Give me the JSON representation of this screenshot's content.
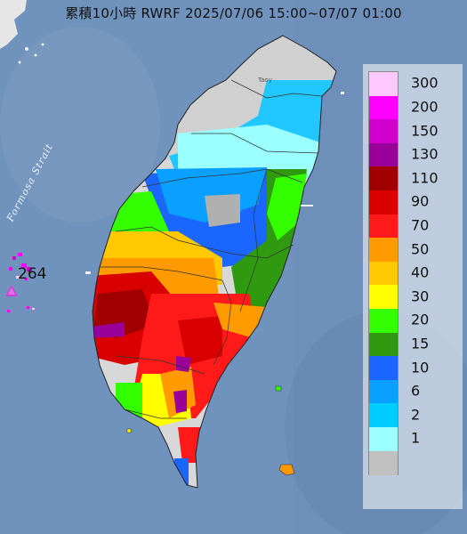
{
  "title": "累積10小時 RWRF 2025/07/06 15:00~07/07 01:00",
  "sea_label": "Formosa Strait",
  "station": {
    "value": "264"
  },
  "city_label": "Taoy",
  "legend": [
    {
      "label": "300",
      "color": "#ffc8ff"
    },
    {
      "label": "200",
      "color": "#ff00ff"
    },
    {
      "label": "150",
      "color": "#d000d0"
    },
    {
      "label": "130",
      "color": "#9a009a"
    },
    {
      "label": "110",
      "color": "#a00000"
    },
    {
      "label": "90",
      "color": "#d80000"
    },
    {
      "label": "70",
      "color": "#ff1a1a"
    },
    {
      "label": "50",
      "color": "#ff9a00"
    },
    {
      "label": "40",
      "color": "#ffc800"
    },
    {
      "label": "30",
      "color": "#ffff00"
    },
    {
      "label": "20",
      "color": "#33ff00"
    },
    {
      "label": "15",
      "color": "#2f9a10"
    },
    {
      "label": "10",
      "color": "#1a66ff"
    },
    {
      "label": "6",
      "color": "#0aa0ff"
    },
    {
      "label": "2",
      "color": "#00ccff"
    },
    {
      "label": "1",
      "color": "#9bffff"
    },
    {
      "label": "",
      "color": "#c0c0c0"
    }
  ]
}
